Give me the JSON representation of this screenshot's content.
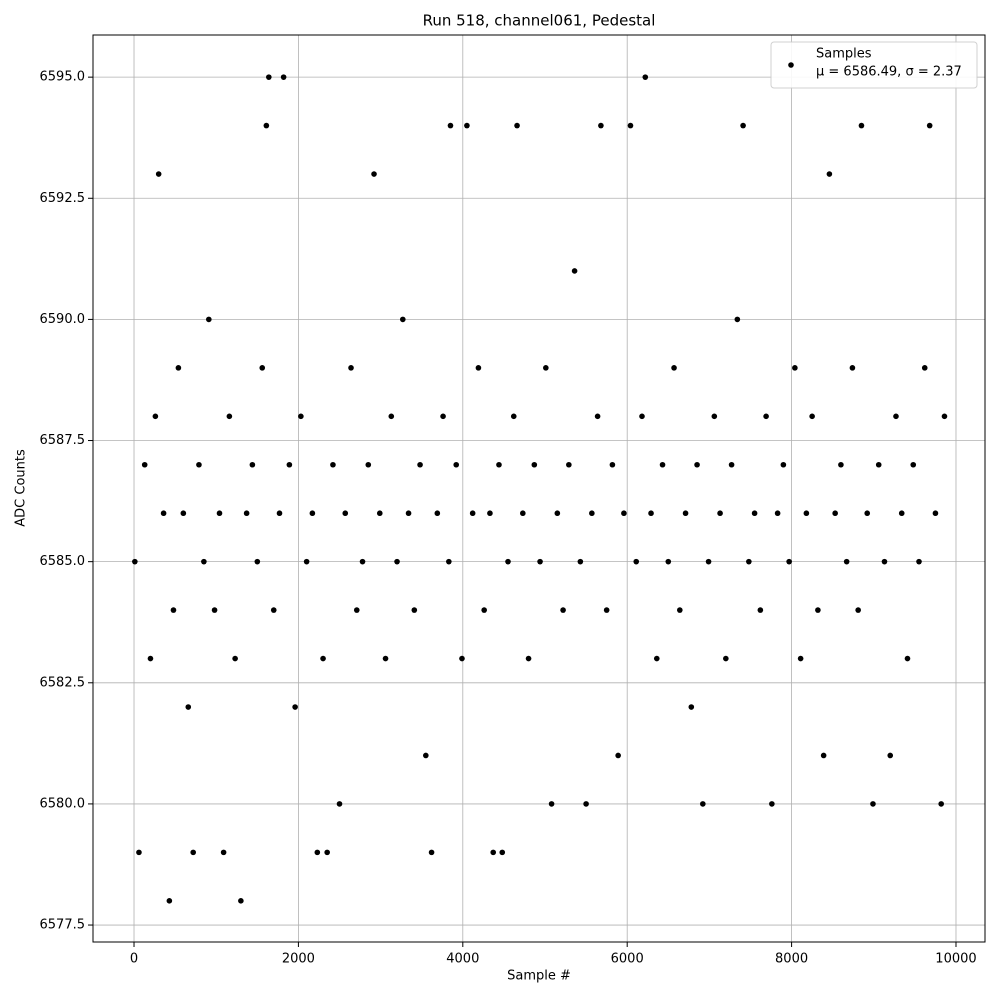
{
  "chart_data": {
    "type": "scatter",
    "title": "Run 518, channel061, Pedestal",
    "xlabel": "Sample #",
    "ylabel": "ADC Counts",
    "xlim": [
      -499,
      10353
    ],
    "ylim": [
      6577.15,
      6595.87
    ],
    "xticks": [
      0,
      2000,
      4000,
      6000,
      8000,
      10000
    ],
    "yticks": [
      6577.5,
      {
        "value": 6580,
        "label": "6580.0"
      },
      6582.5,
      {
        "value": 6585,
        "label": "6585.0"
      },
      6587.5,
      {
        "value": 6590,
        "label": "6590.0"
      },
      6592.5,
      {
        "value": 6595,
        "label": "6595.0"
      }
    ],
    "grid": true,
    "legend": "upper right",
    "legend_note": "μ = 6586.49, σ = 2.37",
    "series": [
      {
        "name": "Samples",
        "color": "#000000",
        "x": [
          10,
          60,
          130,
          200,
          260,
          300,
          360,
          430,
          480,
          540,
          600,
          660,
          720,
          790,
          850,
          910,
          980,
          1040,
          1090,
          1160,
          1230,
          1300,
          1370,
          1440,
          1500,
          1560,
          1610,
          1640,
          1700,
          1770,
          1820,
          1890,
          1960,
          2030,
          2100,
          2170,
          2230,
          2300,
          2350,
          2420,
          2500,
          2570,
          2640,
          2710,
          2780,
          2850,
          2920,
          2990,
          3060,
          3130,
          3200,
          3270,
          3340,
          3410,
          3480,
          3550,
          3620,
          3690,
          3760,
          3830,
          3850,
          3920,
          3990,
          4050,
          4120,
          4190,
          4260,
          4330,
          4370,
          4440,
          4480,
          4550,
          4620,
          4660,
          4730,
          4800,
          4870,
          4940,
          5010,
          5080,
          5150,
          5220,
          5290,
          5360,
          5430,
          5500,
          5570,
          5640,
          5680,
          5750,
          5820,
          5890,
          5960,
          6040,
          6110,
          6180,
          6220,
          6290,
          6360,
          6430,
          6500,
          6570,
          6640,
          6710,
          6780,
          6850,
          6920,
          6990,
          7060,
          7130,
          7200,
          7270,
          7340,
          7410,
          7480,
          7550,
          7620,
          7690,
          7760,
          7830,
          7900,
          7970,
          8040,
          8110,
          8180,
          8250,
          8320,
          8390,
          8460,
          8530,
          8600,
          8670,
          8740,
          8810,
          8850,
          8920,
          8990,
          9060,
          9130,
          9200,
          9270,
          9340,
          9410,
          9480,
          9550,
          9620,
          9680,
          9750,
          9820,
          9860
        ],
        "values": [
          6585,
          6579,
          6587,
          6583,
          6588,
          6593,
          6586,
          6578,
          6584,
          6589,
          6586,
          6582,
          6579,
          6587,
          6585,
          6590,
          6584,
          6586,
          6579,
          6588,
          6583,
          6578,
          6586,
          6587,
          6585,
          6589,
          6594,
          6595,
          6584,
          6586,
          6595,
          6587,
          6582,
          6588,
          6585,
          6586,
          6579,
          6583,
          6579,
          6587,
          6580,
          6586,
          6589,
          6584,
          6585,
          6587,
          6593,
          6586,
          6583,
          6588,
          6585,
          6590,
          6586,
          6584,
          6587,
          6581,
          6579,
          6586,
          6588,
          6585,
          6594,
          6587,
          6583,
          6594,
          6586,
          6589,
          6584,
          6586,
          6579,
          6587,
          6579,
          6585,
          6588,
          6594,
          6586,
          6583,
          6587,
          6585,
          6589,
          6580,
          6586,
          6584,
          6587,
          6591,
          6585,
          6580,
          6586,
          6588,
          6594,
          6584,
          6587,
          6581,
          6586,
          6594,
          6585,
          6588,
          6595,
          6586,
          6583,
          6587,
          6585,
          6589,
          6584,
          6586,
          6582,
          6587,
          6580,
          6585,
          6588,
          6586,
          6583,
          6587,
          6590,
          6594,
          6585,
          6586,
          6584,
          6588,
          6580,
          6586,
          6587,
          6585,
          6589,
          6583,
          6586,
          6588,
          6584,
          6581,
          6593,
          6586,
          6587,
          6585,
          6589,
          6584,
          6594,
          6586,
          6580,
          6587,
          6585,
          6581,
          6588,
          6586,
          6583,
          6587,
          6585,
          6589,
          6594,
          6586,
          6580,
          6588
        ]
      }
    ]
  }
}
